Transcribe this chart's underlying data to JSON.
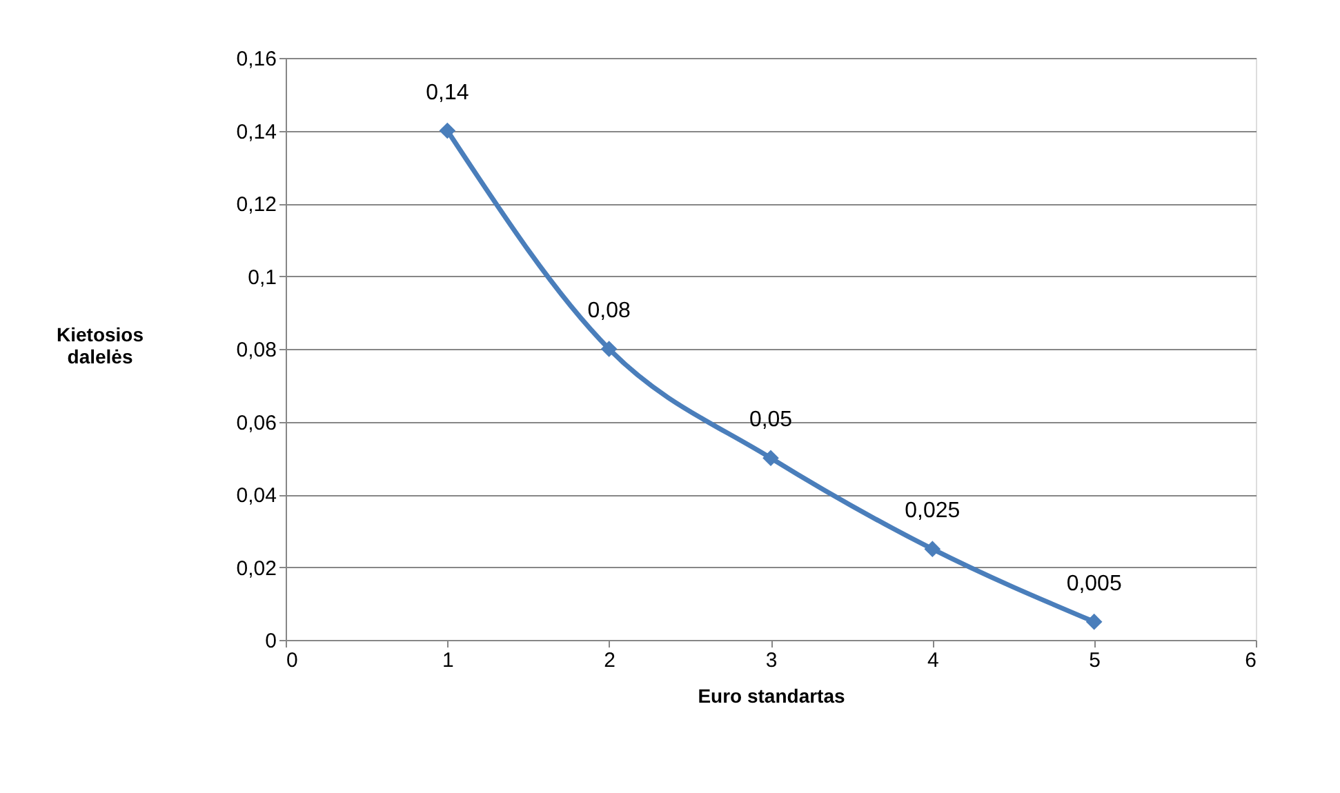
{
  "chart_data": {
    "type": "line",
    "xlabel": "Euro standartas",
    "ylabel": "Kietosios dalelės",
    "x": [
      1,
      2,
      3,
      4,
      5
    ],
    "series": [
      {
        "color": "#4a7ebb",
        "values": [
          0.14,
          0.08,
          0.05,
          0.025,
          0.005
        ],
        "value_labels": [
          "0,14",
          "0,08",
          "0,05",
          "0,025",
          "0,005"
        ]
      }
    ],
    "xlim": [
      0,
      6
    ],
    "xticks": [
      0,
      1,
      2,
      3,
      4,
      5,
      6
    ],
    "ylim": [
      0,
      0.16
    ],
    "yticks": [
      0,
      {
        "value": 0.02,
        "label": "0,02"
      },
      {
        "value": 0.04,
        "label": "0,04"
      },
      {
        "value": 0.06,
        "label": "0,06"
      },
      {
        "value": 0.08,
        "label": "0,08"
      },
      {
        "value": 0.1,
        "label": "0,1"
      },
      {
        "value": 0.12,
        "label": "0,12"
      },
      {
        "value": 0.14,
        "label": "0,14"
      },
      {
        "value": 0.16,
        "label": "0,16"
      }
    ],
    "grid": "y",
    "marker": "diamond",
    "line_style": "solid"
  }
}
